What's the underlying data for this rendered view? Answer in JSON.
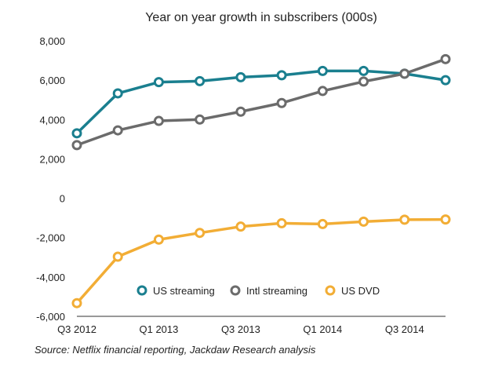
{
  "chart_data": {
    "type": "line",
    "title": "Year on year growth in subscribers (000s)",
    "xlabel": "",
    "ylabel": "",
    "ylim": [
      -6000,
      8000
    ],
    "yticks": [
      8000,
      6000,
      4000,
      2000,
      0,
      -2000,
      -4000,
      -6000
    ],
    "ytick_labels": [
      "8,000",
      "6,000",
      "4,000",
      "2,000",
      "0",
      "-2,000",
      "-4,000",
      "-6,000"
    ],
    "categories": [
      "Q3 2012",
      "Q4 2012",
      "Q1 2013",
      "Q2 2013",
      "Q3 2013",
      "Q4 2013",
      "Q1 2014",
      "Q2 2014",
      "Q3 2014",
      "Q4 2014"
    ],
    "xtick_labels": [
      "Q3 2012",
      "",
      "Q1 2013",
      "",
      "Q3 2013",
      "",
      "Q1 2014",
      "",
      "Q3 2014",
      ""
    ],
    "grid": false,
    "legend": "bottom-center",
    "series": [
      {
        "name": "US streaming",
        "color": "#1a7f8f",
        "values": [
          3300,
          5330,
          5900,
          5950,
          6150,
          6250,
          6470,
          6470,
          6330,
          6000
        ]
      },
      {
        "name": "Intl streaming",
        "color": "#6b6b6b",
        "values": [
          2700,
          3450,
          3930,
          4000,
          4400,
          4840,
          5450,
          5930,
          6330,
          7070
        ]
      },
      {
        "name": "US DVD",
        "color": "#f2ad35",
        "values": [
          -5330,
          -2970,
          -2100,
          -1760,
          -1440,
          -1270,
          -1310,
          -1190,
          -1090,
          -1080
        ]
      }
    ],
    "source": "Source: Netflix financial reporting, Jackdaw Research analysis"
  }
}
